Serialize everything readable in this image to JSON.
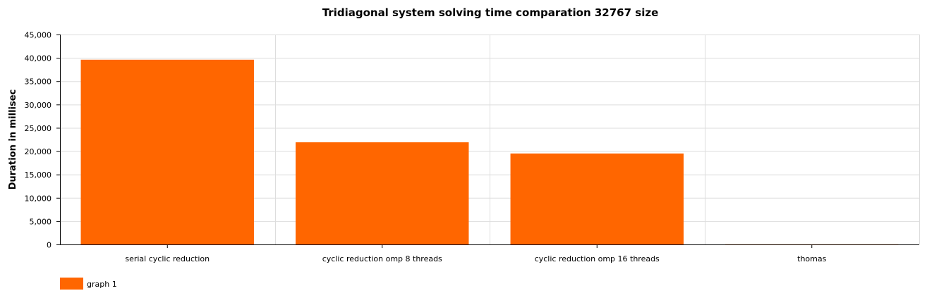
{
  "chart_data": {
    "type": "bar",
    "title": "Tridiagonal system solving time comparation 32767 size",
    "xlabel": "",
    "ylabel": "Duration in millisec",
    "categories": [
      "serial cyclic reduction",
      "cyclic reduction omp 8 threads",
      "cyclic reduction omp 16 threads",
      "thomas"
    ],
    "series": [
      {
        "name": "graph 1",
        "values": [
          39600,
          21900,
          19500,
          30
        ],
        "color": "#ff6600"
      }
    ],
    "ylim": [
      0,
      45000
    ],
    "yticks": [
      0,
      5000,
      10000,
      15000,
      20000,
      25000,
      30000,
      35000,
      40000,
      45000
    ],
    "ytick_labels": [
      "0",
      "5,000",
      "10,000",
      "15,000",
      "20,000",
      "25,000",
      "30,000",
      "35,000",
      "40,000",
      "45,000"
    ],
    "grid": true,
    "legend": "bottom-left"
  }
}
